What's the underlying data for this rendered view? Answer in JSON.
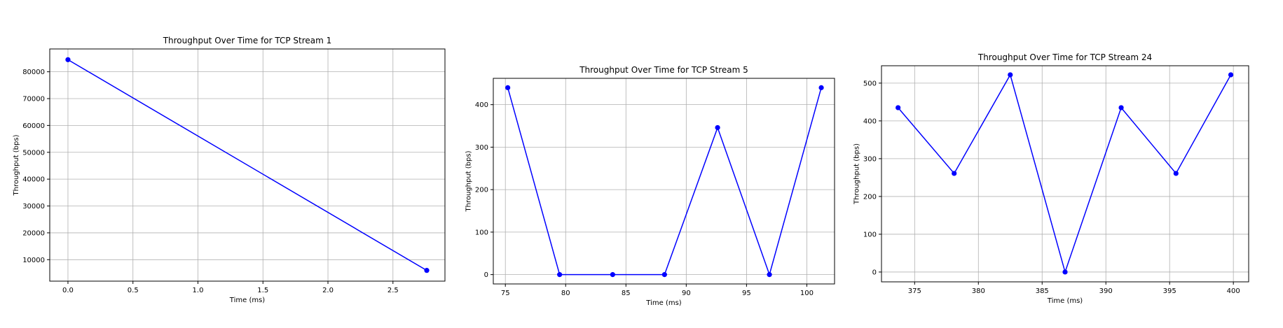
{
  "colors": {
    "series": "#0000ff",
    "grid": "#b0b0b0",
    "axis": "#000000"
  },
  "chart_data": [
    {
      "type": "line",
      "title": "Throughput Over Time for TCP Stream 1",
      "xlabel": "Time (ms)",
      "ylabel": "Throughput (bps)",
      "grid": true,
      "xlim": [
        -0.14,
        2.9
      ],
      "ylim": [
        2000,
        88500
      ],
      "xticks": [
        0.0,
        0.5,
        1.0,
        1.5,
        2.0,
        2.5
      ],
      "xtick_labels": [
        "0.0",
        "0.5",
        "1.0",
        "1.5",
        "2.0",
        "2.5"
      ],
      "yticks": [
        10000,
        20000,
        30000,
        40000,
        50000,
        60000,
        70000,
        80000
      ],
      "ytick_labels": [
        "10000",
        "20000",
        "30000",
        "40000",
        "50000",
        "60000",
        "70000",
        "80000"
      ],
      "series": [
        {
          "x": [
            0.0,
            2.76
          ],
          "y": [
            84500,
            6000
          ],
          "color": "#0000ff"
        }
      ]
    },
    {
      "type": "line",
      "title": "Throughput Over Time for TCP Stream 5",
      "xlabel": "Time (ms)",
      "ylabel": "Throughput (bps)",
      "grid": true,
      "xlim": [
        74.0,
        102.3
      ],
      "ylim": [
        -22,
        462
      ],
      "xticks": [
        75,
        80,
        85,
        90,
        95,
        100
      ],
      "xtick_labels": [
        "75",
        "80",
        "85",
        "90",
        "95",
        "100"
      ],
      "yticks": [
        0,
        100,
        200,
        300,
        400
      ],
      "ytick_labels": [
        "0",
        "100",
        "200",
        "300",
        "400"
      ],
      "series": [
        {
          "x": [
            75.2,
            79.5,
            83.9,
            88.2,
            92.6,
            96.9,
            101.2
          ],
          "y": [
            440,
            0,
            0,
            0,
            346,
            0,
            440
          ],
          "color": "#0000ff"
        }
      ]
    },
    {
      "type": "line",
      "title": "Throughput Over Time for TCP Stream 24",
      "xlabel": "Time (ms)",
      "ylabel": "Throughput (bps)",
      "grid": true,
      "xlim": [
        372.4,
        401.2
      ],
      "ylim": [
        -26,
        546
      ],
      "xticks": [
        375,
        380,
        385,
        390,
        395,
        400
      ],
      "xtick_labels": [
        "375",
        "380",
        "385",
        "390",
        "395",
        "400"
      ],
      "yticks": [
        0,
        100,
        200,
        300,
        400,
        500
      ],
      "ytick_labels": [
        "0",
        "100",
        "200",
        "300",
        "400",
        "500"
      ],
      "series": [
        {
          "x": [
            373.7,
            378.1,
            382.5,
            386.8,
            391.2,
            395.5,
            399.8
          ],
          "y": [
            435,
            261,
            522,
            0,
            435,
            261,
            522
          ],
          "color": "#0000ff"
        }
      ]
    }
  ]
}
